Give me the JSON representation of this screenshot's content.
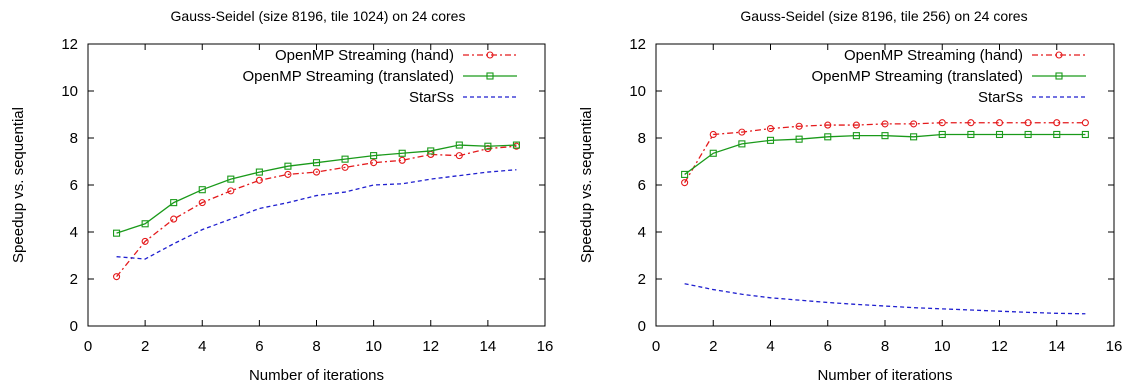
{
  "chart_data": [
    {
      "type": "line",
      "title": "Gauss-Seidel (size 8196, tile 1024) on 24 cores",
      "xlabel": "Number of iterations",
      "ylabel": "Speedup vs. sequential",
      "xlim": [
        0,
        16
      ],
      "ylim": [
        0,
        12
      ],
      "xticks": [
        0,
        2,
        4,
        6,
        8,
        10,
        12,
        14,
        16
      ],
      "yticks": [
        0,
        2,
        4,
        6,
        8,
        10,
        12
      ],
      "grid": false,
      "legend_position": "top-right",
      "x": [
        1,
        2,
        3,
        4,
        5,
        6,
        7,
        8,
        9,
        10,
        11,
        12,
        13,
        14,
        15
      ],
      "series": [
        {
          "name": "OpenMP Streaming (hand)",
          "color": "#e41a1c",
          "dash": "dashdot",
          "marker": "circle",
          "values": [
            2.1,
            3.6,
            4.55,
            5.25,
            5.75,
            6.2,
            6.45,
            6.55,
            6.75,
            6.95,
            7.05,
            7.3,
            7.25,
            7.55,
            7.65
          ]
        },
        {
          "name": "OpenMP Streaming (translated)",
          "color": "#1a9a1a",
          "dash": "solid",
          "marker": "square",
          "values": [
            3.95,
            4.35,
            5.25,
            5.8,
            6.25,
            6.55,
            6.8,
            6.95,
            7.1,
            7.25,
            7.35,
            7.45,
            7.7,
            7.65,
            7.7
          ]
        },
        {
          "name": "StarSs",
          "color": "#1f1fcf",
          "dash": "dashed",
          "marker": "none",
          "values": [
            2.95,
            2.85,
            3.5,
            4.1,
            4.55,
            5.0,
            5.25,
            5.55,
            5.7,
            6.0,
            6.05,
            6.25,
            6.4,
            6.55,
            6.65
          ]
        }
      ]
    },
    {
      "type": "line",
      "title": "Gauss-Seidel (size 8196, tile 256) on 24 cores",
      "xlabel": "Number of iterations",
      "ylabel": "Speedup vs. sequential",
      "xlim": [
        0,
        16
      ],
      "ylim": [
        0,
        12
      ],
      "xticks": [
        0,
        2,
        4,
        6,
        8,
        10,
        12,
        14,
        16
      ],
      "yticks": [
        0,
        2,
        4,
        6,
        8,
        10,
        12
      ],
      "grid": false,
      "legend_position": "top-right",
      "x": [
        1,
        2,
        3,
        4,
        5,
        6,
        7,
        8,
        9,
        10,
        11,
        12,
        13,
        14,
        15
      ],
      "series": [
        {
          "name": "OpenMP Streaming (hand)",
          "color": "#e41a1c",
          "dash": "dashdot",
          "marker": "circle",
          "values": [
            6.1,
            8.15,
            8.25,
            8.4,
            8.5,
            8.55,
            8.55,
            8.6,
            8.6,
            8.65,
            8.65,
            8.65,
            8.65,
            8.65,
            8.65
          ]
        },
        {
          "name": "OpenMP Streaming (translated)",
          "color": "#1a9a1a",
          "dash": "solid",
          "marker": "square",
          "values": [
            6.45,
            7.35,
            7.75,
            7.9,
            7.95,
            8.05,
            8.1,
            8.1,
            8.05,
            8.15,
            8.15,
            8.15,
            8.15,
            8.15,
            8.15
          ]
        },
        {
          "name": "StarSs",
          "color": "#1f1fcf",
          "dash": "dashed",
          "marker": "none",
          "values": [
            1.8,
            1.55,
            1.35,
            1.2,
            1.1,
            1.0,
            0.92,
            0.85,
            0.78,
            0.73,
            0.68,
            0.63,
            0.58,
            0.54,
            0.52
          ]
        }
      ]
    }
  ]
}
